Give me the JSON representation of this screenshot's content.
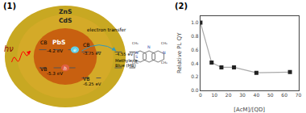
{
  "chart_data": [
    {
      "type": "diagram",
      "title": "(1)",
      "annotations": [
        "ZnS",
        "CdS",
        "PbS",
        "CB",
        "-4.2 eV",
        "VB",
        "-5.3 eV",
        "CB",
        "-3.75 eV",
        "VB",
        "-6.25 eV",
        "e",
        "h",
        "hν",
        "-4.55 eV",
        "Methylene",
        "Blue (MB)",
        "N",
        "S",
        "N",
        "N",
        "CH₃",
        "CH₃",
        "CH₃",
        "CH₃",
        "electron transfer"
      ],
      "colors": [
        "#c8a822",
        "#d4aa28",
        "#c86010"
      ]
    },
    {
      "type": "line",
      "title": "(2)",
      "x": [
        0,
        8,
        15,
        24,
        40,
        64
      ],
      "values": [
        1.0,
        0.41,
        0.34,
        0.34,
        0.26,
        0.27
      ],
      "xlabel": "[AcM]/[QD]",
      "ylabel": "Relative PL QY",
      "xlim": [
        0,
        70
      ],
      "ylim": [
        0,
        1.1
      ],
      "xticks": [
        0,
        10,
        20,
        30,
        40,
        50,
        60,
        70
      ],
      "yticks": [
        {
          "value": 0,
          "label": "0.0"
        },
        0.2,
        0.4,
        0.6,
        0.8,
        {
          "value": 1,
          "label": "1.0"
        }
      ],
      "color": "#aaaaaa",
      "colors": [
        "#222222",
        "#222222",
        "#222222",
        "#222222",
        "#222222",
        "#222222"
      ],
      "marker": "square",
      "grid": false
    }
  ]
}
